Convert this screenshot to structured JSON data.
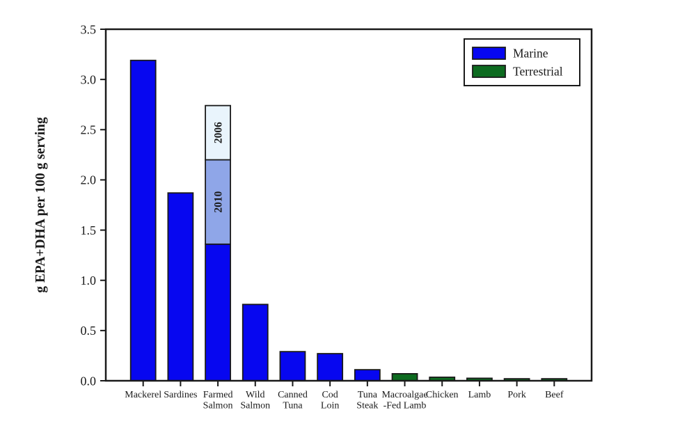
{
  "chart_data": {
    "type": "bar",
    "title": "",
    "xlabel": "",
    "ylabel": "g EPA+DHA per 100 g serving",
    "ylim": [
      0,
      3.5
    ],
    "yticks": [
      "0.0",
      "0.5",
      "1.0",
      "1.5",
      "2.0",
      "2.5",
      "3.0",
      "3.5"
    ],
    "grid": false,
    "legend": {
      "position": "top-right",
      "entries": [
        {
          "label": "Marine",
          "color": "#0707f0"
        },
        {
          "label": "Terrestrial",
          "color": "#0d6b20"
        }
      ]
    },
    "group_colors": {
      "Marine": "#0707f0",
      "Terrestrial": "#0d6b20"
    },
    "outline_color": "#1a1a1a",
    "categories": [
      "Mackerel",
      "Sardines",
      "Farmed Salmon",
      "Wild Salmon",
      "Canned Tuna",
      "Cod Loin",
      "Tuna Steak",
      "Macroalgae-Fed Lamb",
      "Chicken",
      "Lamb",
      "Pork",
      "Beef"
    ],
    "bars": [
      {
        "category": "Mackerel",
        "label_lines": [
          "Mackerel"
        ],
        "group": "Marine",
        "value": 3.19
      },
      {
        "category": "Sardines",
        "label_lines": [
          "Sardines"
        ],
        "group": "Marine",
        "value": 1.87
      },
      {
        "category": "Farmed Salmon",
        "label_lines": [
          "Farmed",
          "Salmon"
        ],
        "group": "Marine",
        "value": 1.36,
        "overlays": [
          {
            "label": "2010",
            "from": 1.36,
            "to": 2.2,
            "color": "#8fa6e8"
          },
          {
            "label": "2006",
            "from": 2.2,
            "to": 2.74,
            "color": "#e9f4fc"
          }
        ]
      },
      {
        "category": "Wild Salmon",
        "label_lines": [
          "Wild",
          "Salmon"
        ],
        "group": "Marine",
        "value": 0.76
      },
      {
        "category": "Canned Tuna",
        "label_lines": [
          "Canned",
          "Tuna"
        ],
        "group": "Marine",
        "value": 0.29
      },
      {
        "category": "Cod Loin",
        "label_lines": [
          "Cod",
          "Loin"
        ],
        "group": "Marine",
        "value": 0.27
      },
      {
        "category": "Tuna Steak",
        "label_lines": [
          "Tuna",
          "Steak"
        ],
        "group": "Marine",
        "value": 0.11
      },
      {
        "category": "Macroalgae-Fed Lamb",
        "label_lines": [
          "Macroalgae",
          "-Fed Lamb"
        ],
        "group": "Terrestrial",
        "value": 0.07
      },
      {
        "category": "Chicken",
        "label_lines": [
          "Chicken"
        ],
        "group": "Terrestrial",
        "value": 0.035
      },
      {
        "category": "Lamb",
        "label_lines": [
          "Lamb"
        ],
        "group": "Terrestrial",
        "value": 0.025
      },
      {
        "category": "Pork",
        "label_lines": [
          "Pork"
        ],
        "group": "Terrestrial",
        "value": 0.02
      },
      {
        "category": "Beef",
        "label_lines": [
          "Beef"
        ],
        "group": "Terrestrial",
        "value": 0.02
      }
    ]
  }
}
